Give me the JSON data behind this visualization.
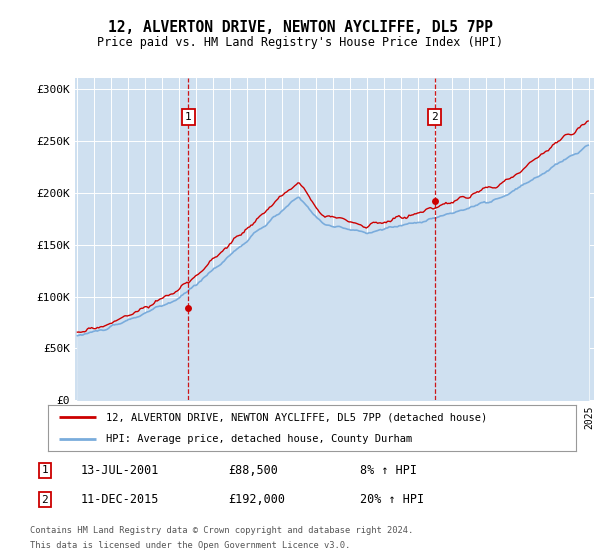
{
  "title": "12, ALVERTON DRIVE, NEWTON AYCLIFFE, DL5 7PP",
  "subtitle": "Price paid vs. HM Land Registry's House Price Index (HPI)",
  "legend_line1": "12, ALVERTON DRIVE, NEWTON AYCLIFFE, DL5 7PP (detached house)",
  "legend_line2": "HPI: Average price, detached house, County Durham",
  "sale1_date": "13-JUL-2001",
  "sale1_price": 88500,
  "sale1_price_str": "£88,500",
  "sale1_pct": "8% ↑ HPI",
  "sale2_date": "11-DEC-2015",
  "sale2_price": 192000,
  "sale2_price_str": "£192,000",
  "sale2_pct": "20% ↑ HPI",
  "footer1": "Contains HM Land Registry data © Crown copyright and database right 2024.",
  "footer2": "This data is licensed under the Open Government Licence v3.0.",
  "plot_bg_color": "#cfe0f0",
  "fig_bg_color": "#ffffff",
  "red_color": "#cc0000",
  "blue_color": "#7aacdc",
  "ylim": [
    0,
    310000
  ],
  "yticks": [
    0,
    50000,
    100000,
    150000,
    200000,
    250000,
    300000
  ],
  "ytick_labels": [
    "£0",
    "£50K",
    "£100K",
    "£150K",
    "£200K",
    "£250K",
    "£300K"
  ],
  "sale1_year": 2001.54,
  "sale2_year": 2015.96
}
